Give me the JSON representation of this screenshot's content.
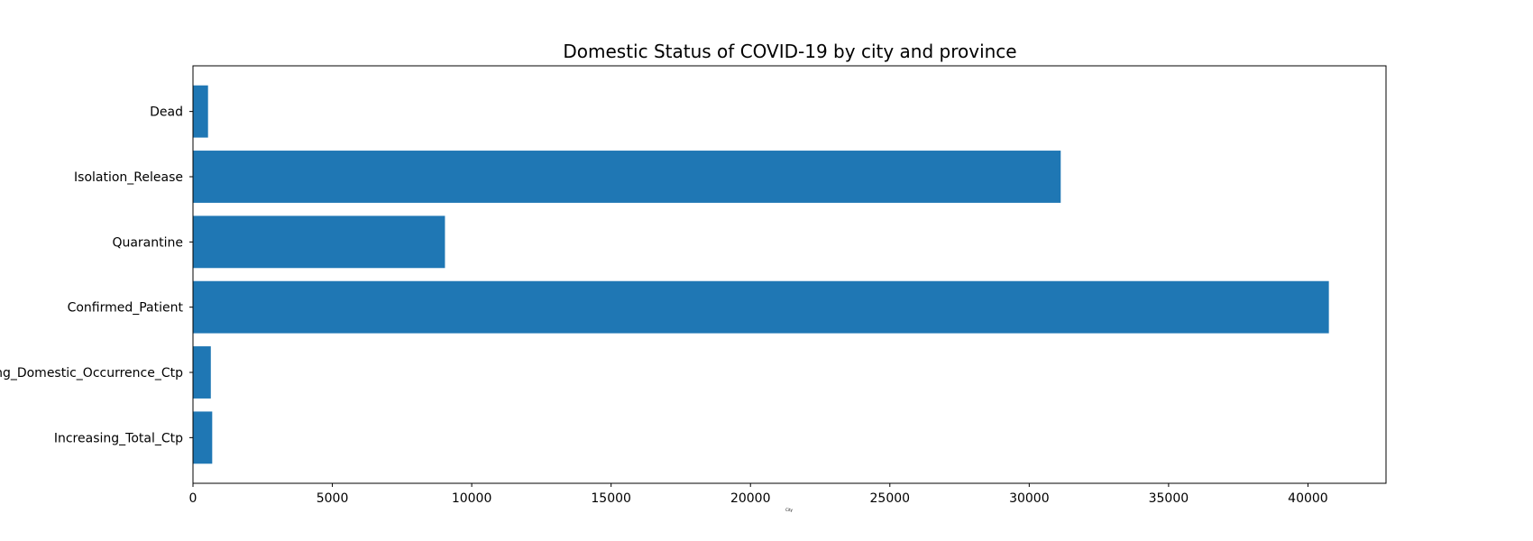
{
  "chart_data": {
    "type": "bar",
    "orientation": "horizontal",
    "title": "Domestic Status of COVID-19 by city and province",
    "xlabel": "City",
    "ylabel": "",
    "categories": [
      "Increasing_Total_Ctp",
      "Increasing_Domestic_Occurrence_Ctp",
      "Confirmed_Patient",
      "Quarantine",
      "Isolation_Release",
      "Dead"
    ],
    "values": [
      690,
      640,
      40750,
      9040,
      31130,
      540
    ],
    "xlim": [
      0,
      42800
    ],
    "xticks": [
      0,
      5000,
      10000,
      15000,
      20000,
      25000,
      30000,
      35000,
      40000
    ],
    "bar_color": "#1f77b4",
    "grid": false,
    "legend": null
  }
}
